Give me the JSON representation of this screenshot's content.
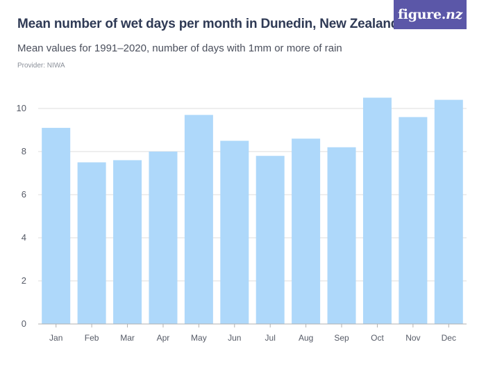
{
  "header": {
    "title": "Mean number of wet days per month in Dunedin, New Zealand",
    "subtitle": "Mean values for 1991–2020, number of days with 1mm or more of rain",
    "provider": "Provider: NIWA",
    "logo_text_main": "figure.",
    "logo_text_suffix": "nz",
    "logo_color": "#5b57a8"
  },
  "colors": {
    "bar": "#aed8fa",
    "grid": "#dcdcdc",
    "axis": "#b0b0b0"
  },
  "chart_data": {
    "type": "bar",
    "title": "Mean number of wet days per month in Dunedin, New Zealand",
    "subtitle": "Mean values for 1991–2020, number of days with 1mm or more of rain",
    "xlabel": "",
    "ylabel": "",
    "categories": [
      "Jan",
      "Feb",
      "Mar",
      "Apr",
      "May",
      "Jun",
      "Jul",
      "Aug",
      "Sep",
      "Oct",
      "Nov",
      "Dec"
    ],
    "values": [
      9.1,
      7.5,
      7.6,
      8.0,
      9.7,
      8.5,
      7.8,
      8.6,
      8.2,
      10.5,
      9.6,
      10.4
    ],
    "yticks": [
      0,
      2,
      4,
      6,
      8,
      10
    ],
    "ylim": [
      0,
      11
    ],
    "grid": true,
    "legend": "none"
  }
}
